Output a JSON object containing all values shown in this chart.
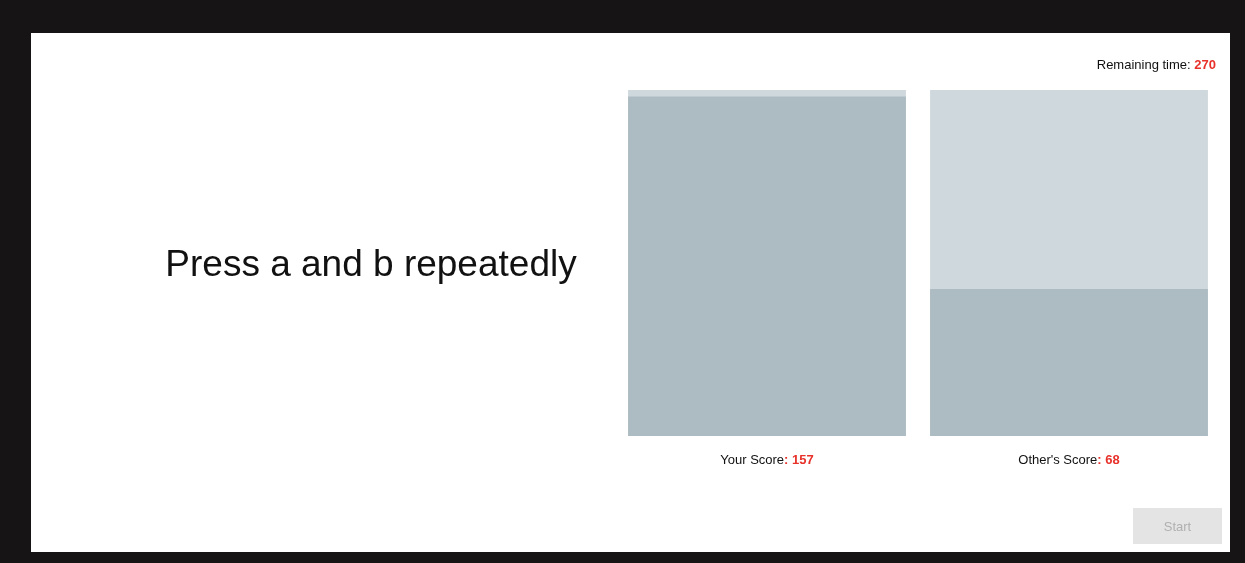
{
  "chart_data": {
    "type": "bar",
    "title": "Press a and b repeatedly",
    "categories": [
      "Your Score",
      "Other's Score"
    ],
    "values": [
      157,
      68
    ],
    "value_labels": [
      ": 157",
      ": 68"
    ],
    "color": "#adbcc2",
    "tick_labels": "x",
    "annotations": [
      "Remaining time: 270",
      "Start"
    ]
  }
}
